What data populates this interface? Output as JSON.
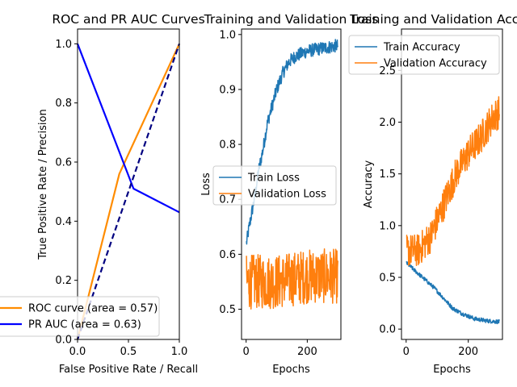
{
  "chart_data": [
    {
      "type": "line",
      "title": "ROC and PR AUC Curves",
      "xlabel": "False Positive Rate / Recall",
      "ylabel": "True Positive Rate / Precision",
      "xlim": [
        0,
        1.0
      ],
      "ylim": [
        0,
        1.05
      ],
      "xticks": [
        0.0,
        0.5,
        1.0
      ],
      "yticks": [
        0.0,
        0.2,
        0.4,
        0.6,
        0.8,
        1.0
      ],
      "legend_position": "lower-left",
      "series": [
        {
          "name": "ROC curve (area = 0.57)",
          "color": "#ff8c00",
          "style": "solid",
          "x": [
            0,
            0.41,
            1.0
          ],
          "y": [
            0,
            0.56,
            1.0
          ]
        },
        {
          "name": "PR AUC (area = 0.63)",
          "color": "#0000ff",
          "style": "solid",
          "x": [
            0,
            0.55,
            1.0
          ],
          "y": [
            1.0,
            0.51,
            0.43
          ]
        },
        {
          "name": "",
          "color": "#000080",
          "style": "dashed",
          "x": [
            0,
            1.0
          ],
          "y": [
            0,
            1.0
          ]
        }
      ]
    },
    {
      "type": "line",
      "title": "Training and Validation Loss",
      "xlabel": "Epochs",
      "ylabel": "Loss",
      "xlim": [
        -15,
        310
      ],
      "ylim": [
        0.445,
        1.01
      ],
      "xticks": [
        0,
        200
      ],
      "yticks": [
        0.5,
        0.6,
        0.7,
        0.8,
        0.9,
        1.0
      ],
      "legend_position": "center-right",
      "series": [
        {
          "name": "Train Loss",
          "color": "#1f77b4",
          "x_start": 1,
          "x_end": 300,
          "y_keys": [
            [
              1,
              0.62
            ],
            [
              10,
              0.65
            ],
            [
              20,
              0.68
            ],
            [
              30,
              0.71
            ],
            [
              40,
              0.75
            ],
            [
              55,
              0.79
            ],
            [
              70,
              0.84
            ],
            [
              85,
              0.87
            ],
            [
              100,
              0.9
            ],
            [
              120,
              0.93
            ],
            [
              140,
              0.95
            ],
            [
              160,
              0.96
            ],
            [
              200,
              0.97
            ],
            [
              250,
              0.975
            ],
            [
              300,
              0.98
            ]
          ]
        },
        {
          "name": "Validation Loss",
          "color": "#ff7f0e",
          "x_start": 1,
          "x_end": 300,
          "y_keys": [
            [
              1,
              0.55
            ],
            [
              100,
              0.55
            ],
            [
              200,
              0.56
            ],
            [
              300,
              0.56
            ]
          ]
        }
      ]
    },
    {
      "type": "line",
      "title": "Training and Validation Accuracy",
      "xlabel": "Epochs",
      "ylabel": "Accuracy",
      "xlim": [
        -15,
        310
      ],
      "ylim": [
        -0.1,
        2.9
      ],
      "xticks": [
        0,
        200
      ],
      "yticks": [
        0.0,
        0.5,
        1.0,
        1.5,
        2.0,
        2.5
      ],
      "legend_position": "upper-right",
      "series": [
        {
          "name": "Train Accuracy",
          "color": "#1f77b4",
          "x_start": 1,
          "x_end": 300,
          "y_keys": [
            [
              1,
              0.64
            ],
            [
              30,
              0.56
            ],
            [
              60,
              0.48
            ],
            [
              90,
              0.4
            ],
            [
              120,
              0.3
            ],
            [
              150,
              0.2
            ],
            [
              180,
              0.15
            ],
            [
              220,
              0.1
            ],
            [
              260,
              0.08
            ],
            [
              300,
              0.07
            ]
          ]
        },
        {
          "name": "Validation Accuracy",
          "color": "#ff7f0e",
          "x_start": 1,
          "x_end": 300,
          "y_keys": [
            [
              1,
              0.76
            ],
            [
              40,
              0.76
            ],
            [
              80,
              0.9
            ],
            [
              120,
              1.2
            ],
            [
              160,
              1.5
            ],
            [
              200,
              1.7
            ],
            [
              240,
              1.85
            ],
            [
              280,
              2.05
            ],
            [
              300,
              2.1
            ]
          ]
        }
      ]
    }
  ]
}
